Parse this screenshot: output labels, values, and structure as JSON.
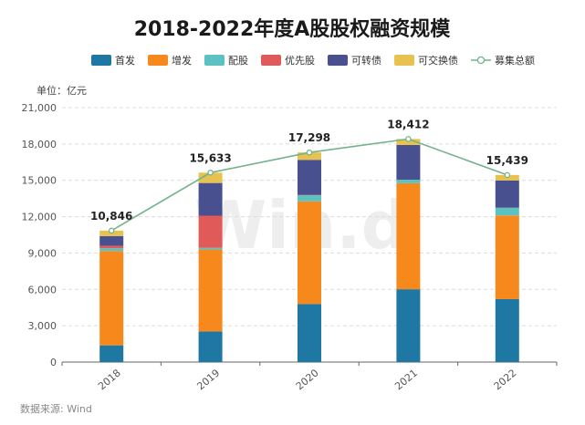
{
  "chart_data": {
    "type": "bar",
    "stacked": true,
    "title": "2018-2022年度A股股权融资规模",
    "unit_label": "单位：亿元",
    "source": "数据来源: Wind",
    "watermark": "Win.d",
    "categories": [
      "2018",
      "2019",
      "2020",
      "2021",
      "2022"
    ],
    "ylim": [
      0,
      21000
    ],
    "yticks": [
      "0",
      "3,000",
      "6,000",
      "9,000",
      "12,000",
      "15,000",
      "18,000",
      "21,000"
    ],
    "ytick_values": [
      0,
      3000,
      6000,
      9000,
      12000,
      15000,
      18000,
      21000
    ],
    "grid": true,
    "legend_position": "top",
    "series": [
      {
        "name": "首发",
        "color": "#1f77a4",
        "values": [
          1380,
          2530,
          4800,
          6010,
          5200
        ]
      },
      {
        "name": "增发",
        "color": "#f7891c",
        "values": [
          7790,
          6760,
          8460,
          8750,
          6900
        ]
      },
      {
        "name": "配股",
        "color": "#5bc1c1",
        "values": [
          230,
          140,
          500,
          290,
          640
        ]
      },
      {
        "name": "优先股",
        "color": "#e05a5a",
        "values": [
          200,
          2650,
          30,
          0,
          0
        ]
      },
      {
        "name": "可转债",
        "color": "#48508f",
        "values": [
          800,
          2700,
          2900,
          2870,
          2250
        ]
      },
      {
        "name": "可交换债",
        "color": "#e7c24e",
        "values": [
          446,
          853,
          608,
          492,
          449
        ]
      }
    ],
    "line": {
      "name": "募集总额",
      "color": "#72b38b",
      "values": [
        10846,
        15633,
        17298,
        18412,
        15439
      ],
      "labels": [
        "10,846",
        "15,633",
        "17,298",
        "18,412",
        "15,439"
      ]
    }
  }
}
